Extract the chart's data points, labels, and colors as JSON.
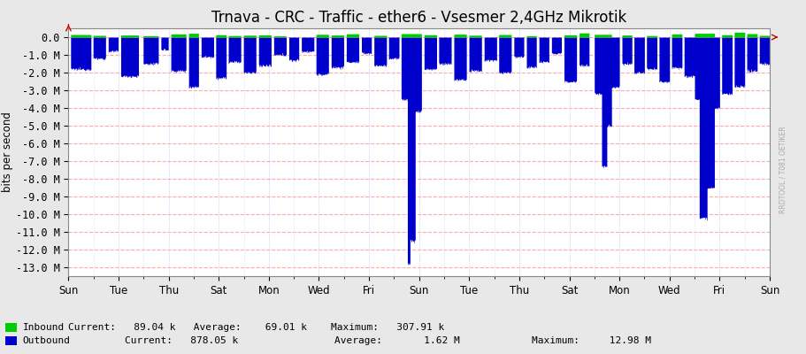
{
  "title": "Trnava - CRC - Traffic - ether6 - Vsesmer 2,4GHz Mikrotik",
  "ylabel": "bits per second",
  "background_color": "#e8e8e8",
  "plot_bg_color": "#ffffff",
  "grid_color_major": "#ffaaaa",
  "grid_color_minor": "#ddddff",
  "ylim": [
    -13500000,
    500000
  ],
  "yticks": [
    0,
    -1000000,
    -2000000,
    -3000000,
    -4000000,
    -5000000,
    -6000000,
    -7000000,
    -8000000,
    -9000000,
    -10000000,
    -11000000,
    -12000000,
    -13000000
  ],
  "ytick_labels": [
    "0.0",
    "-1.0 M",
    "-2.0 M",
    "-3.0 M",
    "-4.0 M",
    "-5.0 M",
    "-6.0 M",
    "-7.0 M",
    "-8.0 M",
    "-9.0 M",
    "-10.0 M",
    "-11.0 M",
    "-12.0 M",
    "-13.0 M"
  ],
  "x_day_labels": [
    "Sun",
    "Tue",
    "Thu",
    "Sat",
    "Mon",
    "Wed",
    "Fri",
    "Sun",
    "Tue",
    "Thu",
    "Sat",
    "Mon",
    "Wed",
    "Fri",
    "Sun"
  ],
  "x_day_positions": [
    0,
    2,
    4,
    6,
    8,
    10,
    12,
    14,
    16,
    18,
    20,
    22,
    24,
    26,
    28
  ],
  "inbound_color": "#00cc00",
  "outbound_color": "#0000cc",
  "legend_inbound": "Inbound",
  "legend_outbound": "Outbound",
  "inbound_current": "89.04 k",
  "inbound_average": "69.01 k",
  "inbound_maximum": "307.91 k",
  "outbound_current": "878.05 k",
  "outbound_average": "1.62 M",
  "outbound_maximum": "12.98 M",
  "title_fontsize": 12,
  "axis_fontsize": 8.5,
  "legend_fontsize": 8,
  "total_days": 28,
  "steps_per_day": 48,
  "watermark_text": "RRDTOOL / T081 OETIKER"
}
